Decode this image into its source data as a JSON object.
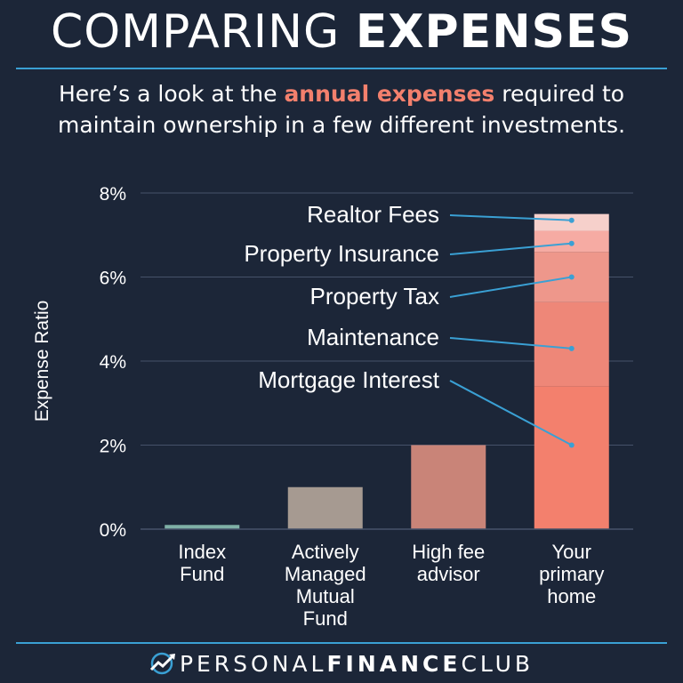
{
  "header": {
    "title_light": "COMPARING",
    "title_bold": "EXPENSES",
    "subtitle_pre": "Here’s a look at the",
    "subtitle_highlight": "annual expenses",
    "subtitle_post": "required to maintain ownership in a few different investments."
  },
  "footer": {
    "brand_light_1": "PERSONAL",
    "brand_bold": "FINANCE",
    "brand_light_2": "CLUB",
    "logo_icon": "chart-trend-logo-icon"
  },
  "colors": {
    "background": "#1c2638",
    "accent": "#3aa0d4",
    "highlight": "#f3806d"
  },
  "chart_data": {
    "type": "bar",
    "ylabel": "Expense Ratio",
    "xlabel": "",
    "ylim": [
      0,
      8
    ],
    "y_ticks": [
      "0%",
      "2%",
      "4%",
      "6%",
      "8%"
    ],
    "y_tick_values": [
      0,
      2,
      4,
      6,
      8
    ],
    "grid": true,
    "categories": [
      [
        "Index",
        "Fund"
      ],
      [
        "Actively",
        "Managed",
        "Mutual",
        "Fund"
      ],
      [
        "High fee",
        "advisor"
      ],
      [
        "Your",
        "primary",
        "home"
      ]
    ],
    "values": [
      0.1,
      1.0,
      2.0,
      7.5
    ],
    "bar_colors": [
      "#7fb0a6",
      "#a69a91",
      "#c98478",
      "#f3806d"
    ],
    "stacked_home": [
      {
        "label": "Mortgage Interest",
        "value": 3.4,
        "color": "#f3806d"
      },
      {
        "label": "Maintenance",
        "value": 2.0,
        "color": "#ee8778"
      },
      {
        "label": "Property Tax",
        "value": 1.2,
        "color": "#ee978b"
      },
      {
        "label": "Property Insurance",
        "value": 0.5,
        "color": "#f6aba3"
      },
      {
        "label": "Realtor Fees",
        "value": 0.4,
        "color": "#f6d0cb"
      }
    ]
  }
}
